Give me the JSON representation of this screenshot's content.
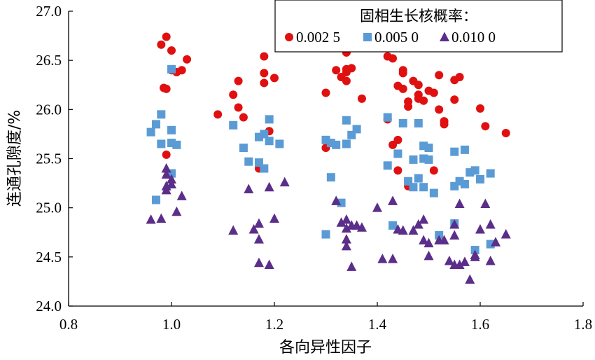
{
  "chart_data": {
    "type": "scatter",
    "title": "",
    "xlabel": "各向异性因子",
    "ylabel": "连通孔隙度/%",
    "xlim": [
      0.8,
      1.8
    ],
    "ylim": [
      24.0,
      27.0
    ],
    "x_ticks": [
      "0.8",
      "1.0",
      "1.2",
      "1.4",
      "1.6",
      "1.8"
    ],
    "y_ticks": [
      "24.0",
      "24.5",
      "25.0",
      "25.5",
      "26.0",
      "26.5",
      "27.0"
    ],
    "grid": false,
    "legend": {
      "title": "固相生长核概率：",
      "placement": "top-right"
    },
    "series": [
      {
        "name": "0.002 5",
        "marker": "circle",
        "color": "#e01010",
        "points": [
          [
            0.98,
            26.66
          ],
          [
            0.99,
            26.74
          ],
          [
            1.0,
            26.6
          ],
          [
            0.985,
            26.22
          ],
          [
            0.99,
            26.21
          ],
          [
            1.0,
            26.4
          ],
          [
            1.01,
            26.38
          ],
          [
            1.02,
            26.4
          ],
          [
            1.03,
            26.51
          ],
          [
            0.99,
            25.54
          ],
          [
            1.09,
            25.95
          ],
          [
            1.12,
            26.15
          ],
          [
            1.13,
            26.29
          ],
          [
            1.13,
            26.02
          ],
          [
            1.14,
            25.92
          ],
          [
            1.18,
            26.54
          ],
          [
            1.18,
            26.27
          ],
          [
            1.2,
            26.32
          ],
          [
            1.18,
            26.37
          ],
          [
            1.17,
            25.4
          ],
          [
            1.19,
            25.78
          ],
          [
            1.3,
            26.17
          ],
          [
            1.3,
            25.61
          ],
          [
            1.32,
            26.4
          ],
          [
            1.33,
            26.33
          ],
          [
            1.34,
            26.41
          ],
          [
            1.34,
            26.38
          ],
          [
            1.35,
            26.42
          ],
          [
            1.34,
            26.58
          ],
          [
            1.34,
            26.29
          ],
          [
            1.37,
            26.11
          ],
          [
            1.42,
            26.54
          ],
          [
            1.43,
            26.52
          ],
          [
            1.44,
            26.24
          ],
          [
            1.45,
            26.4
          ],
          [
            1.45,
            26.37
          ],
          [
            1.45,
            26.21
          ],
          [
            1.46,
            26.08
          ],
          [
            1.46,
            26.03
          ],
          [
            1.47,
            26.29
          ],
          [
            1.48,
            26.25
          ],
          [
            1.48,
            26.15
          ],
          [
            1.48,
            26.11
          ],
          [
            1.49,
            26.09
          ],
          [
            1.5,
            26.19
          ],
          [
            1.42,
            25.9
          ],
          [
            1.43,
            25.64
          ],
          [
            1.44,
            25.69
          ],
          [
            1.51,
            26.17
          ],
          [
            1.52,
            26.35
          ],
          [
            1.52,
            26.0
          ],
          [
            1.53,
            25.85
          ],
          [
            1.53,
            25.88
          ],
          [
            1.55,
            26.3
          ],
          [
            1.56,
            26.33
          ],
          [
            1.55,
            26.1
          ],
          [
            1.44,
            25.38
          ],
          [
            1.46,
            25.22
          ],
          [
            1.51,
            25.38
          ],
          [
            1.6,
            26.01
          ],
          [
            1.61,
            25.83
          ],
          [
            1.65,
            25.76
          ]
        ]
      },
      {
        "name": "0.005 0",
        "marker": "square",
        "color": "#5b9bd5",
        "points": [
          [
            1.0,
            26.41
          ],
          [
            0.98,
            25.95
          ],
          [
            0.97,
            25.85
          ],
          [
            0.96,
            25.77
          ],
          [
            1.0,
            25.79
          ],
          [
            0.98,
            25.65
          ],
          [
            1.0,
            25.66
          ],
          [
            1.01,
            25.64
          ],
          [
            1.0,
            25.35
          ],
          [
            0.97,
            25.08
          ],
          [
            1.12,
            25.84
          ],
          [
            1.14,
            25.61
          ],
          [
            1.15,
            25.47
          ],
          [
            1.17,
            25.72
          ],
          [
            1.18,
            25.75
          ],
          [
            1.19,
            25.9
          ],
          [
            1.19,
            25.68
          ],
          [
            1.21,
            25.65
          ],
          [
            1.17,
            25.46
          ],
          [
            1.18,
            25.4
          ],
          [
            1.3,
            25.69
          ],
          [
            1.31,
            25.66
          ],
          [
            1.32,
            25.64
          ],
          [
            1.34,
            25.89
          ],
          [
            1.35,
            25.74
          ],
          [
            1.36,
            25.8
          ],
          [
            1.34,
            25.65
          ],
          [
            1.31,
            25.31
          ],
          [
            1.33,
            25.05
          ],
          [
            1.3,
            24.73
          ],
          [
            1.42,
            25.92
          ],
          [
            1.42,
            25.43
          ],
          [
            1.44,
            25.55
          ],
          [
            1.45,
            25.86
          ],
          [
            1.47,
            25.49
          ],
          [
            1.48,
            25.86
          ],
          [
            1.49,
            25.63
          ],
          [
            1.49,
            25.5
          ],
          [
            1.48,
            25.3
          ],
          [
            1.49,
            25.21
          ],
          [
            1.47,
            25.21
          ],
          [
            1.5,
            25.49
          ],
          [
            1.5,
            25.61
          ],
          [
            1.51,
            25.15
          ],
          [
            1.43,
            24.82
          ],
          [
            1.46,
            25.27
          ],
          [
            1.55,
            25.57
          ],
          [
            1.57,
            25.59
          ],
          [
            1.55,
            25.22
          ],
          [
            1.56,
            25.27
          ],
          [
            1.57,
            25.24
          ],
          [
            1.58,
            25.36
          ],
          [
            1.59,
            25.38
          ],
          [
            1.6,
            25.29
          ],
          [
            1.62,
            25.35
          ],
          [
            1.55,
            24.84
          ],
          [
            1.52,
            24.72
          ],
          [
            1.59,
            24.57
          ],
          [
            1.62,
            24.63
          ]
        ]
      },
      {
        "name": "0.010 0",
        "marker": "triangle",
        "color": "#5b2e8a",
        "points": [
          [
            0.99,
            25.4
          ],
          [
            0.99,
            25.34
          ],
          [
            1.0,
            25.29
          ],
          [
            1.0,
            25.24
          ],
          [
            0.99,
            25.18
          ],
          [
            0.99,
            25.22
          ],
          [
            1.02,
            25.12
          ],
          [
            0.96,
            24.88
          ],
          [
            0.98,
            24.89
          ],
          [
            1.01,
            24.96
          ],
          [
            1.12,
            24.77
          ],
          [
            1.15,
            25.19
          ],
          [
            1.16,
            24.78
          ],
          [
            1.17,
            24.68
          ],
          [
            1.17,
            24.84
          ],
          [
            1.19,
            25.21
          ],
          [
            1.2,
            24.89
          ],
          [
            1.22,
            25.26
          ],
          [
            1.17,
            24.44
          ],
          [
            1.19,
            24.42
          ],
          [
            1.32,
            25.07
          ],
          [
            1.33,
            24.85
          ],
          [
            1.34,
            24.79
          ],
          [
            1.34,
            24.88
          ],
          [
            1.35,
            24.82
          ],
          [
            1.36,
            24.82
          ],
          [
            1.37,
            24.8
          ],
          [
            1.34,
            24.68
          ],
          [
            1.34,
            24.61
          ],
          [
            1.35,
            24.4
          ],
          [
            1.4,
            25.0
          ],
          [
            1.43,
            25.07
          ],
          [
            1.44,
            24.78
          ],
          [
            1.45,
            24.77
          ],
          [
            1.47,
            24.77
          ],
          [
            1.48,
            24.83
          ],
          [
            1.49,
            24.88
          ],
          [
            1.49,
            24.67
          ],
          [
            1.5,
            24.64
          ],
          [
            1.41,
            24.48
          ],
          [
            1.43,
            24.48
          ],
          [
            1.52,
            24.67
          ],
          [
            1.53,
            24.67
          ],
          [
            1.55,
            24.83
          ],
          [
            1.56,
            25.04
          ],
          [
            1.55,
            24.72
          ],
          [
            1.54,
            24.46
          ],
          [
            1.56,
            24.42
          ],
          [
            1.57,
            24.45
          ],
          [
            1.58,
            24.27
          ],
          [
            1.59,
            24.52
          ],
          [
            1.6,
            24.78
          ],
          [
            1.61,
            25.04
          ],
          [
            1.62,
            24.83
          ],
          [
            1.62,
            24.46
          ],
          [
            1.63,
            24.65
          ],
          [
            1.65,
            24.73
          ],
          [
            1.55,
            24.42
          ],
          [
            1.59,
            24.5
          ],
          [
            1.5,
            24.51
          ]
        ]
      }
    ]
  }
}
